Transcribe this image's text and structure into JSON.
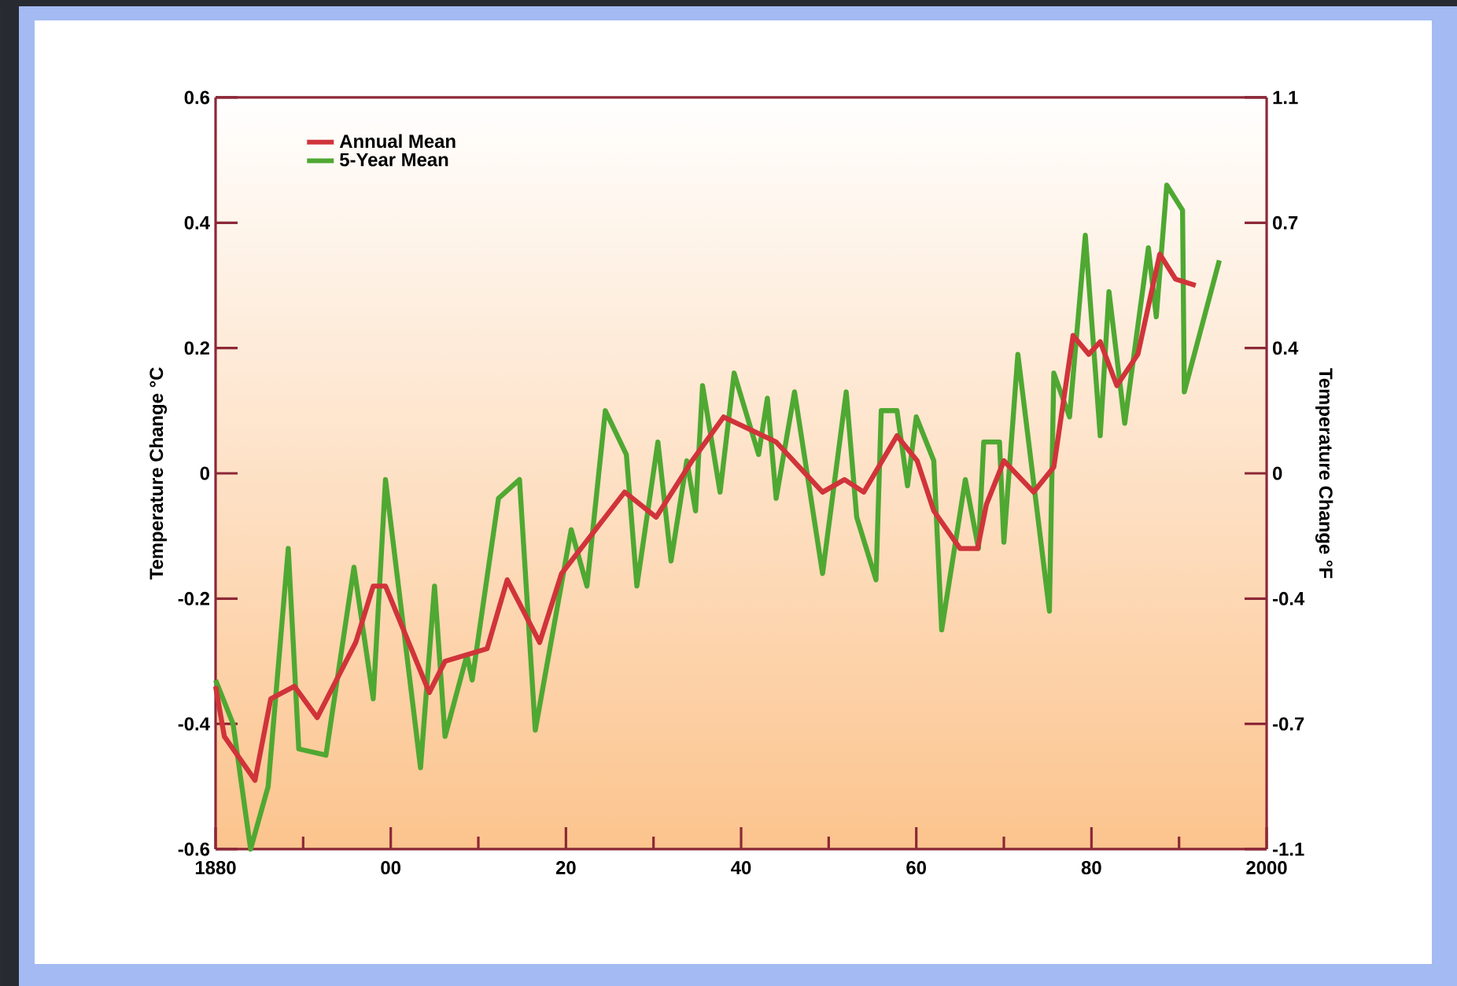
{
  "chart_data": {
    "type": "line",
    "xlabel": null,
    "ylabel": "Temperature Change °C",
    "y2label": "Temperature Change °F",
    "xlim": [
      1880,
      2000
    ],
    "xticks": [
      1880,
      {
        "value": 1900,
        "label": "00"
      },
      {
        "value": 1920,
        "label": "20"
      },
      {
        "value": 1940,
        "label": "40"
      },
      {
        "value": 1960,
        "label": "60"
      },
      {
        "value": 1980,
        "label": "80"
      },
      2000
    ],
    "ylim": [
      -0.6,
      0.6
    ],
    "yticks": [
      -0.6,
      -0.4,
      -0.2,
      0,
      0.2,
      0.4,
      0.6
    ],
    "y2lim": [
      -1.08,
      1.08
    ],
    "y2ticks": [
      {
        "value": -1.08,
        "label": "-1.1"
      },
      {
        "value": -0.72,
        "label": "-0.7"
      },
      {
        "value": -0.36,
        "label": "-0.4"
      },
      0,
      {
        "value": 0.36,
        "label": "0.4"
      },
      {
        "value": 0.72,
        "label": "0.7"
      },
      {
        "value": 1.08,
        "label": "1.1"
      }
    ],
    "legend": "top left",
    "grid": false,
    "line_style": "solid",
    "series": [
      {
        "name": "Annual Mean",
        "color": "#d0343a",
        "x": [
          1880,
          1881,
          1884.5,
          1886.3,
          1889,
          1891.6,
          1896,
          1898,
          1899.4,
          1904.4,
          1906.2,
          1911,
          1913.3,
          1917,
          1919.5,
          1926.7,
          1930.3,
          1934.4,
          1938,
          1941,
          1944,
          1949.3,
          1951.8,
          1954,
          1957.8,
          1960.1,
          1962,
          1965,
          1967,
          1968,
          1970,
          1973.4,
          1975.7,
          1977.9,
          1979.7,
          1981,
          1982.9,
          1985.3,
          1987.8,
          1989.6,
          1991.9
        ],
        "values": [
          -0.34,
          -0.42,
          -0.49,
          -0.36,
          -0.34,
          -0.39,
          -0.27,
          -0.18,
          -0.18,
          -0.35,
          -0.3,
          -0.28,
          -0.17,
          -0.27,
          -0.16,
          -0.03,
          -0.07,
          0.02,
          0.09,
          0.07,
          0.05,
          -0.03,
          -0.01,
          -0.03,
          0.06,
          0.02,
          -0.06,
          -0.12,
          -0.12,
          -0.05,
          0.02,
          -0.03,
          0.01,
          0.22,
          0.19,
          0.21,
          0.14,
          0.19,
          0.35,
          0.31,
          0.3
        ]
      },
      {
        "name": "5-Year Mean",
        "color": "#4fa832",
        "x": [
          1880,
          1882,
          1884,
          1886,
          1888.3,
          1889.5,
          1892.6,
          1895.8,
          1898,
          1899.4,
          1903.4,
          1905,
          1906.2,
          1908.7,
          1909.3,
          1912.3,
          1914.7,
          1916.5,
          1920.6,
          1922.4,
          1924.5,
          1926.9,
          1928.1,
          1930.5,
          1932,
          1933.8,
          1934.8,
          1935.6,
          1937.6,
          1939.2,
          1942,
          1943,
          1944,
          1946.1,
          1949.3,
          1952,
          1953.2,
          1955.4,
          1956,
          1957.8,
          1959,
          1960,
          1962,
          1962.9,
          1965.6,
          1967.1,
          1967.7,
          1969.5,
          1970,
          1971.6,
          1975.2,
          1975.7,
          1977.5,
          1979.3,
          1981,
          1982,
          1983.8,
          1986.5,
          1987.4,
          1988.6,
          1990.4,
          1990.6,
          1994.6
        ],
        "values": [
          -0.33,
          -0.4,
          -0.6,
          -0.5,
          -0.12,
          -0.44,
          -0.45,
          -0.15,
          -0.36,
          -0.01,
          -0.47,
          -0.18,
          -0.42,
          -0.29,
          -0.33,
          -0.04,
          -0.01,
          -0.41,
          -0.09,
          -0.18,
          0.1,
          0.03,
          -0.18,
          0.05,
          -0.14,
          0.02,
          -0.06,
          0.14,
          -0.03,
          0.16,
          0.03,
          0.12,
          -0.04,
          0.13,
          -0.16,
          0.13,
          -0.07,
          -0.17,
          0.1,
          0.1,
          -0.02,
          0.09,
          0.02,
          -0.25,
          -0.01,
          -0.12,
          0.05,
          0.05,
          -0.11,
          0.19,
          -0.22,
          0.16,
          0.09,
          0.38,
          0.06,
          0.29,
          0.08,
          0.36,
          0.25,
          0.46,
          0.42,
          0.13,
          0.34
        ]
      }
    ]
  }
}
